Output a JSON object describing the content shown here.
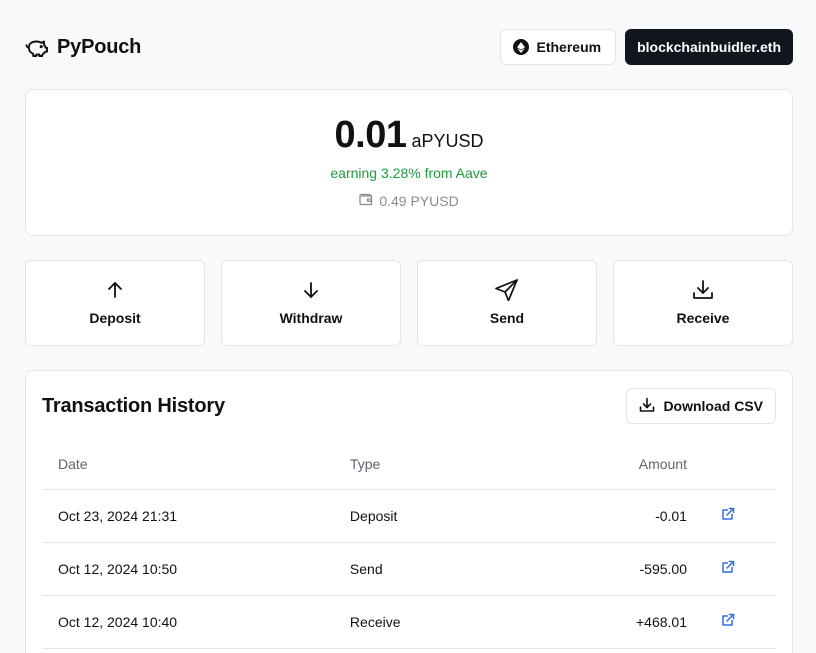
{
  "header": {
    "app_name": "PyPouch",
    "network_label": "Ethereum",
    "account_label": "blockchainbuidler.eth"
  },
  "balance": {
    "amount": "0.01",
    "unit": "aPYUSD",
    "earning": "earning 3.28% from Aave",
    "wallet_balance": "0.49 PYUSD"
  },
  "actions": [
    {
      "label": "Deposit",
      "icon": "arrow-up-icon"
    },
    {
      "label": "Withdraw",
      "icon": "arrow-down-icon"
    },
    {
      "label": "Send",
      "icon": "send-icon"
    },
    {
      "label": "Receive",
      "icon": "download-icon"
    }
  ],
  "transactions": {
    "title": "Transaction History",
    "download_label": "Download CSV",
    "columns": {
      "date": "Date",
      "type": "Type",
      "amount": "Amount"
    },
    "rows": [
      {
        "date": "Oct 23, 2024 21:31",
        "type": "Deposit",
        "amount": "-0.01",
        "sign": "negative"
      },
      {
        "date": "Oct 12, 2024 10:50",
        "type": "Send",
        "amount": "-595.00",
        "sign": "negative"
      },
      {
        "date": "Oct 12, 2024 10:40",
        "type": "Receive",
        "amount": "+468.01",
        "sign": "positive"
      }
    ]
  },
  "colors": {
    "positive": "#1e9a3e",
    "negative": "#d9303a",
    "link": "#2f6fe4",
    "account_bg": "#11151e"
  }
}
